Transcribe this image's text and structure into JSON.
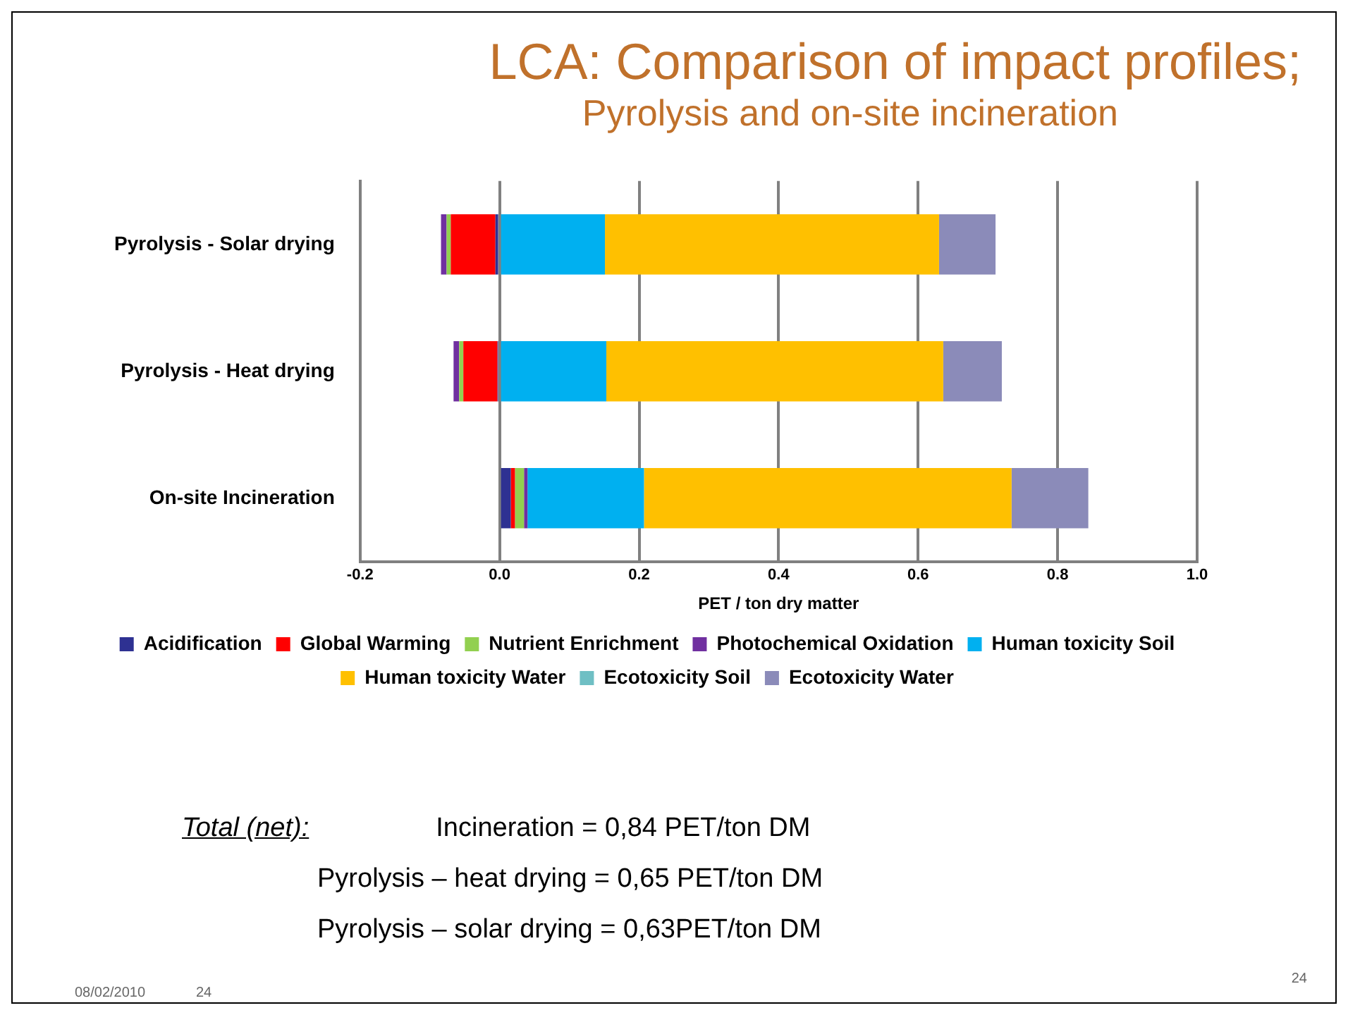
{
  "chart_data": {
    "type": "bar",
    "orientation": "horizontal",
    "stacked": true,
    "title": "LCA: Comparison of impact profiles;",
    "subtitle": "Pyrolysis and on-site incineration",
    "xlabel": "PET / ton dry matter",
    "categories": [
      "Pyrolysis - Solar drying",
      "Pyrolysis - Heat drying",
      "On-site Incineration"
    ],
    "series": [
      {
        "name": "Acidification",
        "color": "#2e3192",
        "values": [
          -0.006,
          -0.003,
          0.016
        ]
      },
      {
        "name": "Global Warming",
        "color": "#ff0000",
        "values": [
          -0.064,
          -0.049,
          0.006
        ]
      },
      {
        "name": "Nutrient Enrichment",
        "color": "#92d050",
        "values": [
          -0.006,
          -0.006,
          0.013
        ]
      },
      {
        "name": "Photochemical Oxidation",
        "color": "#7030a0",
        "values": [
          -0.008,
          -0.008,
          0.005
        ]
      },
      {
        "name": "Human toxicity Soil",
        "color": "#00b0f0",
        "values": [
          0.151,
          0.153,
          0.167
        ]
      },
      {
        "name": "Human toxicity Water",
        "color": "#ffc000",
        "values": [
          0.479,
          0.483,
          0.527
        ]
      },
      {
        "name": "Ecotoxicity Soil",
        "color": "#6fbfc4",
        "values": [
          0,
          0,
          0
        ]
      },
      {
        "name": "Ecotoxicity Water",
        "color": "#8b8bb9",
        "values": [
          0.081,
          0.084,
          0.11
        ]
      }
    ],
    "xlim": [
      -0.2,
      1.0
    ],
    "xticks": [
      {
        "value": -0.2,
        "label": "-0.2"
      },
      {
        "value": 0,
        "label": "0.0"
      },
      {
        "value": 0.2,
        "label": "0.2"
      },
      {
        "value": 0.4,
        "label": "0.4"
      },
      {
        "value": 0.6,
        "label": "0.6"
      },
      {
        "value": 0.8,
        "label": "0.8"
      },
      {
        "value": 1.0,
        "label": "1.0"
      }
    ],
    "grid": "x",
    "legend": "bottom",
    "annotations": [
      "Total (net):",
      "Incineration = 0,84 PET/ton DM",
      "Pyrolysis – heat drying = 0,65 PET/ton DM",
      "Pyrolysis – solar drying = 0,63PET/ton DM",
      "08/02/2010",
      "24",
      "24"
    ]
  }
}
